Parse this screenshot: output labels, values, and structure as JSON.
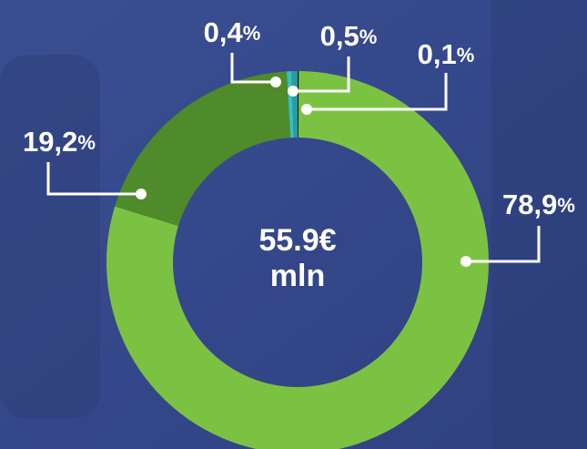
{
  "chart_data": {
    "type": "donut",
    "values": [
      0.1,
      78.9,
      19.2,
      0.4,
      0.5
    ],
    "value_labels": [
      "0,1%",
      "78,9%",
      "19,2%",
      "0,4%",
      "0,5%"
    ],
    "colors": [
      "#111a10",
      "#7cc242",
      "#4f8a2b",
      "#35c0c0",
      "#2a9aa3"
    ],
    "center_text": [
      "55.9€",
      "mln"
    ]
  }
}
